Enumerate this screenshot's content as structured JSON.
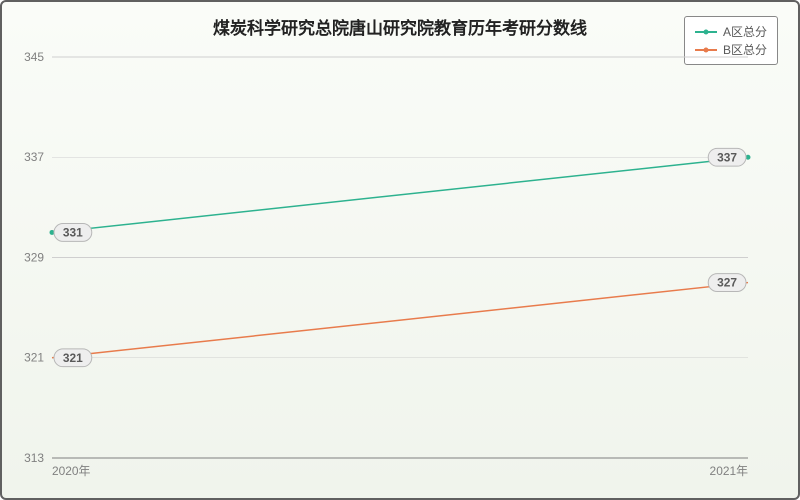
{
  "chart": {
    "type": "line",
    "title": "煤炭科学研究总院唐山研究院教育历年考研分数线",
    "title_fontsize": 17,
    "background_gradient": [
      "#fafcf8",
      "#f0f4ec"
    ],
    "border_color": "#606060",
    "x": {
      "categories": [
        "2020年",
        "2021年"
      ],
      "positions": [
        0,
        1
      ],
      "label_fontsize": 12,
      "label_color": "#808080"
    },
    "y": {
      "min": 313,
      "max": 345,
      "tick_step": 8,
      "ticks": [
        313,
        321,
        329,
        337,
        345
      ],
      "label_fontsize": 12,
      "label_color": "#808080",
      "grid_color": "#cfcfcf"
    },
    "series": [
      {
        "name": "A区总分",
        "color": "#2db28f",
        "values": [
          331,
          337
        ]
      },
      {
        "name": "B区总分",
        "color": "#e87b4c",
        "values": [
          321,
          327
        ]
      }
    ],
    "legend": {
      "position": "top-right",
      "bg": "#ffffff",
      "border": "#888888",
      "fontsize": 12,
      "color": "#595959"
    },
    "value_badge": {
      "bg": "#eeeeee",
      "border": "#b7b7b7",
      "fontsize": 12,
      "color": "#595959"
    },
    "line_width": 1.5,
    "marker_radius": 2.5
  }
}
